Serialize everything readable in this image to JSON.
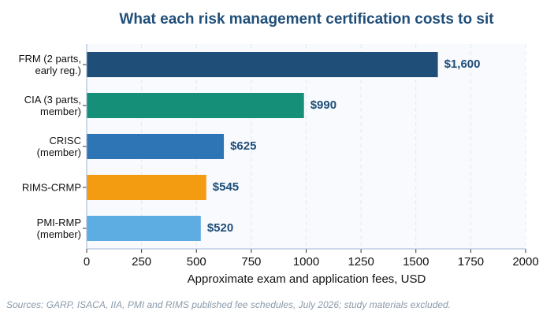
{
  "chart_data": {
    "type": "bar",
    "orientation": "horizontal",
    "title": "What each risk management certification costs to sit",
    "categories": [
      "FRM (2 parts,\nearly reg.)",
      "CIA (3 parts,\nmember)",
      "CRISC\n(member)",
      "RIMS-CRMP",
      "PMI-RMP\n(member)"
    ],
    "values": [
      1600,
      990,
      625,
      545,
      520
    ],
    "value_labels": [
      "$1,600",
      "$990",
      "$625",
      "$545",
      "$520"
    ],
    "colors": [
      "#1f4e79",
      "#168f78",
      "#2e75b6",
      "#f39c12",
      "#5dade2"
    ],
    "xlim": [
      0,
      2000
    ],
    "xticks": [
      0,
      250,
      500,
      750,
      1000,
      1250,
      1500,
      1750,
      2000
    ],
    "xlabel": "Approximate exam and application fees, USD",
    "grid": true,
    "source": "Sources: GARP, ISACA, IIA, PMI and RIMS published fee schedules, July 2026; study materials excluded."
  }
}
